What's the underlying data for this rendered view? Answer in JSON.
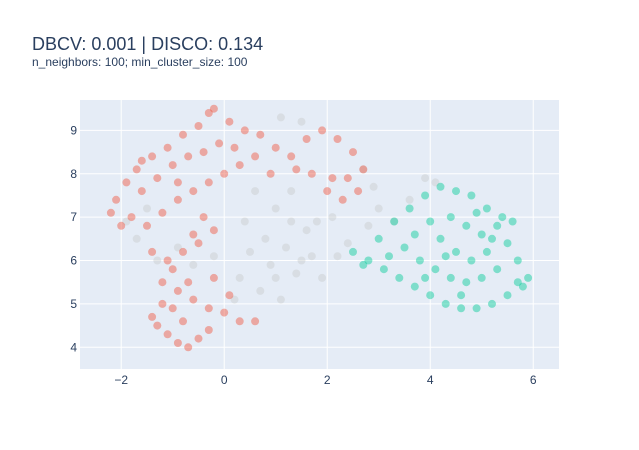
{
  "chart_data": {
    "type": "scatter",
    "title": "DBCV: 0.001 | DISCO: 0.134",
    "subtitle": "n_neighbors: 100; min_cluster_size: 100",
    "xlabel": "",
    "ylabel": "",
    "xlim": [
      -2.8,
      6.5
    ],
    "ylim": [
      3.5,
      9.7
    ],
    "x_ticks": [
      -2,
      0,
      2,
      4,
      6
    ],
    "x_tick_labels": [
      "−2",
      "0",
      "2",
      "4",
      "6"
    ],
    "y_ticks": [
      4,
      5,
      6,
      7,
      8,
      9
    ],
    "y_tick_labels": [
      "4",
      "5",
      "6",
      "7",
      "8",
      "9"
    ],
    "grid": true,
    "legend": "none",
    "colors": {
      "plot_bg": "#e5ecf6",
      "grid": "#ffffff",
      "noise": "#c8cbcc",
      "cluster_a": "#ef553b",
      "cluster_b": "#00cc96"
    },
    "series": [
      {
        "cluster": "noise",
        "color": "#c8cbcc",
        "points": [
          [
            0.6,
            7.6
          ],
          [
            1.0,
            7.2
          ],
          [
            1.3,
            6.9
          ],
          [
            1.6,
            6.7
          ],
          [
            0.8,
            6.5
          ],
          [
            1.2,
            6.3
          ],
          [
            1.7,
            6.1
          ],
          [
            0.9,
            5.9
          ],
          [
            1.4,
            5.7
          ],
          [
            1.9,
            5.6
          ],
          [
            0.5,
            6.2
          ],
          [
            0.3,
            5.6
          ],
          [
            0.7,
            5.3
          ],
          [
            1.1,
            5.1
          ],
          [
            -0.6,
            5.9
          ],
          [
            -0.9,
            6.3
          ],
          [
            -1.3,
            6.0
          ],
          [
            -1.7,
            6.5
          ],
          [
            -1.9,
            6.9
          ],
          [
            -1.5,
            7.2
          ],
          [
            2.4,
            6.4
          ],
          [
            2.8,
            6.8
          ],
          [
            3.0,
            7.2
          ],
          [
            3.3,
            6.9
          ],
          [
            3.6,
            7.4
          ],
          [
            3.9,
            7.9
          ],
          [
            4.1,
            7.8
          ],
          [
            1.8,
            6.9
          ],
          [
            2.1,
            7.0
          ],
          [
            1.3,
            7.6
          ],
          [
            2.7,
            8.1
          ],
          [
            2.9,
            7.7
          ],
          [
            1.5,
            9.2
          ],
          [
            1.1,
            9.3
          ],
          [
            0.4,
            6.9
          ],
          [
            -0.2,
            6.1
          ],
          [
            2.2,
            6.1
          ],
          [
            1.0,
            5.6
          ],
          [
            0.2,
            5.1
          ],
          [
            1.5,
            6.0
          ]
        ]
      },
      {
        "cluster": "a",
        "color": "#ef553b",
        "points": [
          [
            -2.2,
            7.1
          ],
          [
            -2.1,
            7.4
          ],
          [
            -1.9,
            7.8
          ],
          [
            -1.7,
            8.1
          ],
          [
            -1.4,
            8.4
          ],
          [
            -1.1,
            8.6
          ],
          [
            -0.8,
            8.9
          ],
          [
            -0.5,
            9.1
          ],
          [
            -0.3,
            9.4
          ],
          [
            -0.2,
            9.5
          ],
          [
            0.1,
            9.2
          ],
          [
            0.4,
            9.0
          ],
          [
            0.7,
            8.9
          ],
          [
            1.0,
            8.6
          ],
          [
            1.3,
            8.4
          ],
          [
            1.6,
            8.8
          ],
          [
            1.9,
            9.0
          ],
          [
            2.2,
            8.8
          ],
          [
            2.5,
            8.5
          ],
          [
            2.7,
            8.1
          ],
          [
            2.6,
            7.6
          ],
          [
            2.3,
            7.4
          ],
          [
            2.0,
            7.6
          ],
          [
            1.7,
            8.0
          ],
          [
            2.4,
            7.9
          ],
          [
            -1.6,
            7.6
          ],
          [
            -1.3,
            7.9
          ],
          [
            -1.0,
            8.2
          ],
          [
            -0.7,
            8.4
          ],
          [
            -0.4,
            8.5
          ],
          [
            -0.1,
            8.7
          ],
          [
            -1.8,
            7.0
          ],
          [
            -1.5,
            6.8
          ],
          [
            -1.2,
            7.1
          ],
          [
            -0.9,
            7.4
          ],
          [
            -0.6,
            7.6
          ],
          [
            -0.3,
            7.8
          ],
          [
            0.0,
            8.0
          ],
          [
            0.3,
            8.2
          ],
          [
            0.6,
            8.4
          ],
          [
            -0.4,
            7.0
          ],
          [
            -0.6,
            6.6
          ],
          [
            -0.8,
            6.2
          ],
          [
            -0.5,
            6.4
          ],
          [
            -0.2,
            6.7
          ],
          [
            -1.0,
            5.8
          ],
          [
            -1.2,
            5.5
          ],
          [
            -0.9,
            5.3
          ],
          [
            -0.6,
            5.1
          ],
          [
            -0.3,
            4.9
          ],
          [
            0.0,
            4.8
          ],
          [
            0.3,
            4.6
          ],
          [
            0.6,
            4.6
          ],
          [
            -1.3,
            4.5
          ],
          [
            -1.1,
            4.3
          ],
          [
            -0.9,
            4.1
          ],
          [
            -0.7,
            4.0
          ],
          [
            -0.5,
            4.2
          ],
          [
            -0.3,
            4.4
          ],
          [
            -1.4,
            4.7
          ],
          [
            -1.0,
            4.9
          ],
          [
            -0.7,
            5.5
          ],
          [
            -1.1,
            6.0
          ],
          [
            -1.4,
            6.2
          ],
          [
            -0.2,
            5.6
          ],
          [
            0.1,
            5.2
          ],
          [
            -0.8,
            4.6
          ],
          [
            -1.2,
            5.0
          ],
          [
            2.1,
            7.9
          ],
          [
            0.9,
            8.0
          ],
          [
            -2.0,
            6.8
          ],
          [
            -1.6,
            8.3
          ],
          [
            1.4,
            8.1
          ],
          [
            0.2,
            8.6
          ],
          [
            -0.9,
            7.8
          ]
        ]
      },
      {
        "cluster": "b",
        "color": "#00cc96",
        "points": [
          [
            2.5,
            6.2
          ],
          [
            2.8,
            6.0
          ],
          [
            3.1,
            5.8
          ],
          [
            3.4,
            5.6
          ],
          [
            3.7,
            5.4
          ],
          [
            4.0,
            5.2
          ],
          [
            4.3,
            5.0
          ],
          [
            4.6,
            4.9
          ],
          [
            4.9,
            4.9
          ],
          [
            5.2,
            5.0
          ],
          [
            5.5,
            5.2
          ],
          [
            5.8,
            5.4
          ],
          [
            5.9,
            5.6
          ],
          [
            5.7,
            6.0
          ],
          [
            5.5,
            6.4
          ],
          [
            5.3,
            6.8
          ],
          [
            5.1,
            7.2
          ],
          [
            4.8,
            7.5
          ],
          [
            4.5,
            7.6
          ],
          [
            4.2,
            7.7
          ],
          [
            3.9,
            7.5
          ],
          [
            3.6,
            7.2
          ],
          [
            3.3,
            6.9
          ],
          [
            3.0,
            6.5
          ],
          [
            3.5,
            6.3
          ],
          [
            3.8,
            6.0
          ],
          [
            4.1,
            5.8
          ],
          [
            4.4,
            5.6
          ],
          [
            4.7,
            5.5
          ],
          [
            5.0,
            5.6
          ],
          [
            5.3,
            5.8
          ],
          [
            4.2,
            6.5
          ],
          [
            4.5,
            6.2
          ],
          [
            4.8,
            6.0
          ],
          [
            5.1,
            6.2
          ],
          [
            4.0,
            6.9
          ],
          [
            4.4,
            7.0
          ],
          [
            4.7,
            6.8
          ],
          [
            5.0,
            6.6
          ],
          [
            3.7,
            6.6
          ],
          [
            5.4,
            7.0
          ],
          [
            5.6,
            6.9
          ],
          [
            4.9,
            7.1
          ],
          [
            3.2,
            6.1
          ],
          [
            2.7,
            5.9
          ],
          [
            4.6,
            5.2
          ],
          [
            5.7,
            5.5
          ],
          [
            4.3,
            6.1
          ],
          [
            3.9,
            5.6
          ],
          [
            5.2,
            6.5
          ]
        ]
      }
    ]
  }
}
